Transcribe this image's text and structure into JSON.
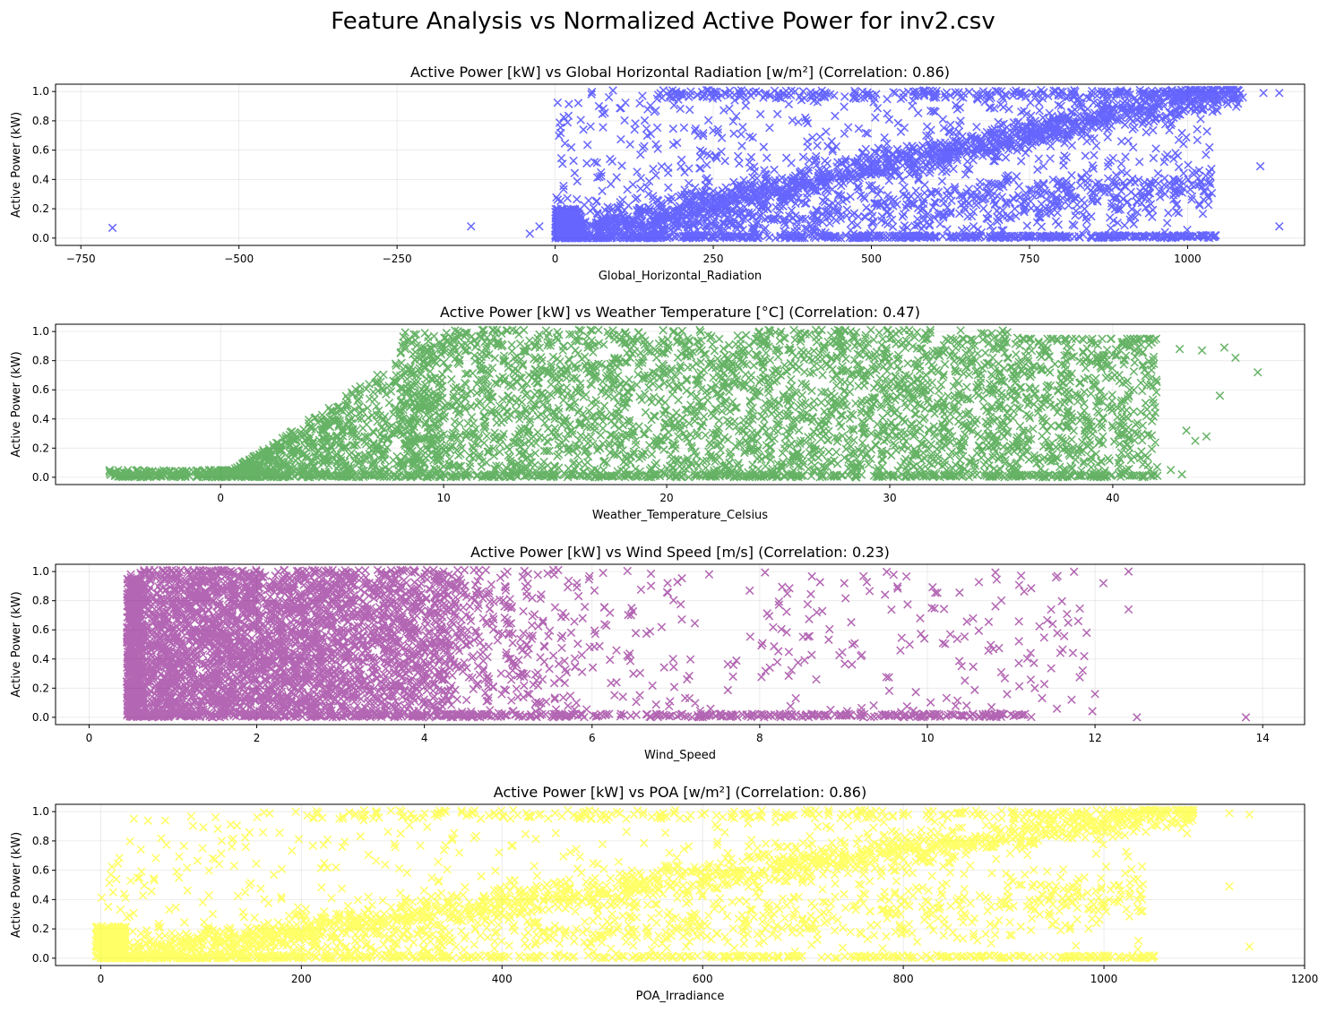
{
  "suptitle": "Feature Analysis vs Normalized Active Power for inv2.csv",
  "chart_data": [
    {
      "type": "scatter",
      "title": "Active Power [kW] vs Global Horizontal Radiation [w/m²] (Correlation: 0.86)",
      "xlabel": "Global_Horizontal_Radiation",
      "ylabel": "Active Power (kW)",
      "xlim": [
        -790,
        1185
      ],
      "ylim": [
        -0.05,
        1.05
      ],
      "xticks": [
        -750,
        -500,
        -250,
        0,
        250,
        500,
        750,
        1000
      ],
      "xtick_labels": [
        "−750",
        "−500",
        "−250",
        "0",
        "250",
        "500",
        "750",
        "1000"
      ],
      "yticks": [
        0.0,
        0.2,
        0.4,
        0.6,
        0.8,
        1.0
      ],
      "ytick_labels": [
        "0.0",
        "0.2",
        "0.4",
        "0.6",
        "0.8",
        "1.0"
      ],
      "color": "#0000ff",
      "marker": "x",
      "grid": true,
      "correlation": 0.86,
      "outliers": [
        [
          -700,
          0.07
        ],
        [
          -133,
          0.08
        ],
        [
          -40,
          0.03
        ],
        [
          -25,
          0.08
        ],
        [
          1115,
          0.49
        ],
        [
          1145,
          0.08
        ],
        [
          1120,
          0.99
        ],
        [
          1145,
          0.99
        ]
      ]
    },
    {
      "type": "scatter",
      "title": "Active Power [kW] vs Weather Temperature [°C] (Correlation: 0.47)",
      "xlabel": "Weather_Temperature_Celsius",
      "ylabel": "Active Power (kW)",
      "xlim": [
        -7.4,
        48.6
      ],
      "ylim": [
        -0.05,
        1.05
      ],
      "xticks": [
        0,
        10,
        20,
        30,
        40
      ],
      "xtick_labels": [
        "0",
        "10",
        "20",
        "30",
        "40"
      ],
      "yticks": [
        0.0,
        0.2,
        0.4,
        0.6,
        0.8,
        1.0
      ],
      "ytick_labels": [
        "0.0",
        "0.2",
        "0.4",
        "0.6",
        "0.8",
        "1.0"
      ],
      "color": "#008000",
      "marker": "x",
      "grid": true,
      "correlation": 0.47,
      "outliers": [
        [
          43,
          0.88
        ],
        [
          44,
          0.87
        ],
        [
          45,
          0.89
        ],
        [
          45.5,
          0.82
        ],
        [
          46.5,
          0.72
        ],
        [
          44.8,
          0.56
        ],
        [
          43.3,
          0.32
        ],
        [
          43.7,
          0.25
        ],
        [
          44.2,
          0.28
        ],
        [
          43.1,
          0.02
        ],
        [
          42.6,
          0.05
        ]
      ]
    },
    {
      "type": "scatter",
      "title": "Active Power [kW] vs Wind Speed [m/s] (Correlation: 0.23)",
      "xlabel": "Wind_Speed",
      "ylabel": "Active Power (kW)",
      "xlim": [
        -0.4,
        14.5
      ],
      "ylim": [
        -0.05,
        1.05
      ],
      "xticks": [
        0,
        2,
        4,
        6,
        8,
        10,
        12,
        14
      ],
      "xtick_labels": [
        "0",
        "2",
        "4",
        "6",
        "8",
        "10",
        "12",
        "14"
      ],
      "yticks": [
        0.0,
        0.2,
        0.4,
        0.6,
        0.8,
        1.0
      ],
      "ytick_labels": [
        "0.0",
        "0.2",
        "0.4",
        "0.6",
        "0.8",
        "1.0"
      ],
      "color": "#800080",
      "marker": "x",
      "grid": true,
      "correlation": 0.23,
      "outliers": [
        [
          13.8,
          0.0
        ],
        [
          12.5,
          0.0
        ],
        [
          12.4,
          0.74
        ],
        [
          12.4,
          1.0
        ],
        [
          11.9,
          0.58
        ],
        [
          12.0,
          0.16
        ],
        [
          11.8,
          0.66
        ],
        [
          12.1,
          0.92
        ]
      ]
    },
    {
      "type": "scatter",
      "title": "Active Power [kW] vs POA [w/m²] (Correlation: 0.86)",
      "xlabel": "POA_Irradiance",
      "ylabel": "Active Power (kW)",
      "xlim": [
        -45,
        1200
      ],
      "ylim": [
        -0.05,
        1.05
      ],
      "xticks": [
        0,
        200,
        400,
        600,
        800,
        1000,
        1200
      ],
      "xtick_labels": [
        "0",
        "200",
        "400",
        "600",
        "800",
        "1000",
        "1200"
      ],
      "yticks": [
        0.0,
        0.2,
        0.4,
        0.6,
        0.8,
        1.0
      ],
      "ytick_labels": [
        "0.0",
        "0.2",
        "0.4",
        "0.6",
        "0.8",
        "1.0"
      ],
      "color": "#ffff00",
      "marker": "x",
      "grid": true,
      "correlation": 0.86,
      "outliers": [
        [
          1125,
          0.49
        ],
        [
          1145,
          0.08
        ],
        [
          1125,
          0.99
        ],
        [
          1145,
          0.98
        ]
      ]
    }
  ]
}
